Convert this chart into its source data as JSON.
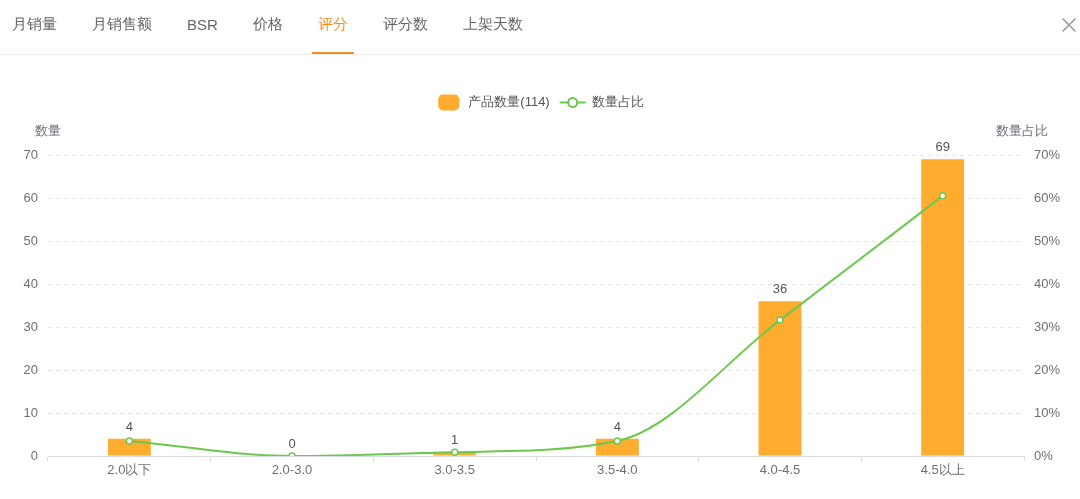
{
  "chart_data": [
    {
      "type": "other",
      "annotations": [
        "月销量",
        "月销售额",
        "BSR",
        "价格",
        "评分",
        "评分数",
        "上架天数"
      ]
    },
    {
      "type": "bar",
      "categories": [
        "2.0以下",
        "2.0-3.0",
        "3.0-3.5",
        "3.5-4.0",
        "4.0-4.5",
        "4.5以上"
      ],
      "series": [
        {
          "name": "产品数量(114)",
          "type": "bar",
          "color": "#ffac2f",
          "values": [
            4,
            0,
            1,
            4,
            36,
            69
          ],
          "value_labels": [
            "4",
            "0",
            "1",
            "4",
            "36",
            "69"
          ]
        },
        {
          "name": "数量占比",
          "type": "line",
          "axis": "y2",
          "color": "#6cc84c",
          "values": [
            3.5,
            0,
            0.9,
            3.5,
            31.6,
            60.5
          ]
        }
      ],
      "ylabel": "数量",
      "y2label": "数量占比",
      "ylim": [
        0,
        70
      ],
      "yticks": [
        0,
        10,
        20,
        30,
        40,
        50,
        60,
        70
      ],
      "y2lim": [
        0,
        70
      ],
      "y2ticks": [
        {
          "value": 0,
          "label": "0%"
        },
        {
          "value": 10,
          "label": "10%"
        },
        {
          "value": 20,
          "label": "20%"
        },
        {
          "value": 30,
          "label": "30%"
        },
        {
          "value": 40,
          "label": "40%"
        },
        {
          "value": 50,
          "label": "50%"
        },
        {
          "value": 60,
          "label": "60%"
        },
        {
          "value": 70,
          "label": "70%"
        }
      ],
      "grid": "y",
      "legend": "top",
      "marker": "circle"
    }
  ]
}
